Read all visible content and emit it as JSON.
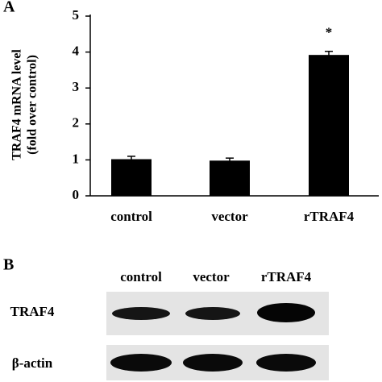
{
  "chart_data": {
    "type": "bar",
    "panel_label": "A",
    "y_label_lines": [
      "TRAF4 mRNA level",
      "(fold over control)"
    ],
    "categories": [
      "control",
      "vector",
      "rTRAF4"
    ],
    "values": [
      1.02,
      0.98,
      3.92
    ],
    "errors": [
      0.08,
      0.07,
      0.1
    ],
    "color": "#000000",
    "annotation": "*",
    "ylim": [
      0,
      5
    ],
    "yticks": [
      0,
      1,
      2,
      3,
      4,
      5
    ],
    "grid": false
  },
  "panel_b": {
    "label": "B",
    "lanes": [
      "control",
      "vector",
      "rTRAF4"
    ],
    "rows": [
      "TRAF4",
      "β-actin"
    ]
  }
}
